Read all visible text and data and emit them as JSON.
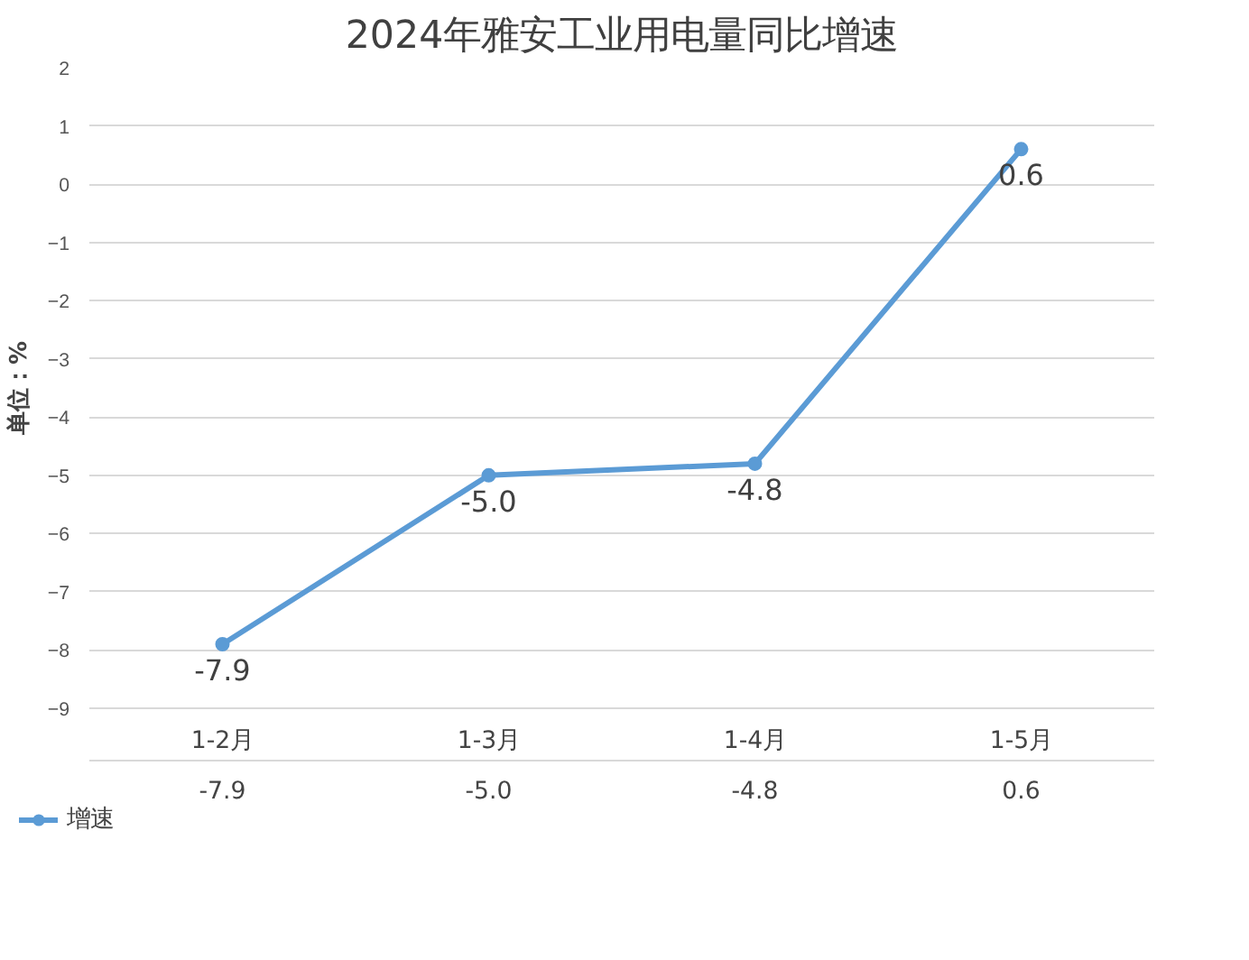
{
  "chart_data": {
    "type": "line",
    "title": "2024年雅安工业用电量同比增速",
    "ylabel": "单位：%",
    "categories": [
      "1-2月",
      "1-3月",
      "1-4月",
      "1-5月"
    ],
    "series": [
      {
        "name": "增速",
        "color": "#5b9bd5",
        "values": [
          -7.9,
          -5.0,
          -4.8,
          0.6
        ],
        "value_labels": [
          "-7.9",
          "-5.0",
          "-4.8",
          "0.6"
        ]
      }
    ],
    "ylim": [
      -9,
      2
    ],
    "yticks": [
      -9,
      -8,
      -7,
      -6,
      -5,
      -4,
      -3,
      -2,
      -1,
      0,
      1,
      2
    ],
    "grid": "y",
    "legend": "bottom left",
    "marker": "circle",
    "line_style": "solid"
  }
}
